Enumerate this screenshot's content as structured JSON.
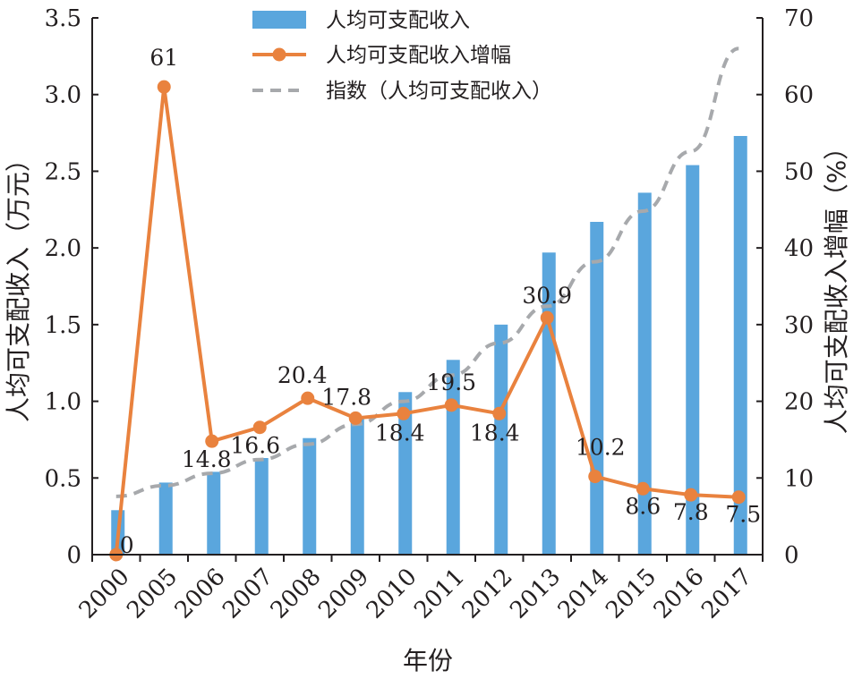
{
  "chart_data": {
    "type": "bar",
    "xlabel": "年份",
    "ylabel_left": "人均可支配收入（万元）",
    "ylabel_right": "人均可支配收入增幅（%）",
    "categories": [
      "2000",
      "2005",
      "2006",
      "2007",
      "2008",
      "2009",
      "2010",
      "2011",
      "2012",
      "2013",
      "2014",
      "2015",
      "2016",
      "2017"
    ],
    "ylim_left": [
      0,
      3.5
    ],
    "yticks_left": [
      "0",
      "0.5",
      "1.0",
      "1.5",
      "2.0",
      "2.5",
      "3.0",
      "3.5"
    ],
    "ylim_right": [
      0,
      70
    ],
    "yticks_right": [
      "0",
      "10",
      "20",
      "30",
      "40",
      "50",
      "60",
      "70"
    ],
    "grid": false,
    "legend_position": "top-center",
    "series": [
      {
        "name": "人均可支配收入",
        "type": "bar",
        "axis": "left",
        "color": "#5aa6dd",
        "values": [
          0.29,
          0.47,
          0.54,
          0.63,
          0.76,
          0.89,
          1.06,
          1.27,
          1.5,
          1.97,
          2.17,
          2.36,
          2.54,
          2.73
        ]
      },
      {
        "name": "人均可支配收入增幅",
        "type": "line",
        "axis": "right",
        "color": "#e9823e",
        "values": [
          0,
          61,
          14.8,
          16.6,
          20.4,
          17.8,
          18.4,
          19.5,
          18.4,
          30.9,
          10.2,
          8.6,
          7.8,
          7.5
        ],
        "labels": [
          "0",
          "61",
          "14.8",
          "16.6",
          "20.4",
          "17.8",
          "18.4",
          "19.5",
          "18.4",
          "30.9",
          "10.2",
          "8.6",
          "7.8",
          "7.5"
        ]
      },
      {
        "name": "指数（人均可支配收入）",
        "type": "trend",
        "axis": "left",
        "color": "#a7a9ac",
        "values": [
          0.38,
          0.45,
          0.53,
          0.62,
          0.72,
          0.85,
          1.0,
          1.17,
          1.38,
          1.62,
          1.91,
          2.24,
          2.63,
          3.3
        ]
      }
    ]
  }
}
